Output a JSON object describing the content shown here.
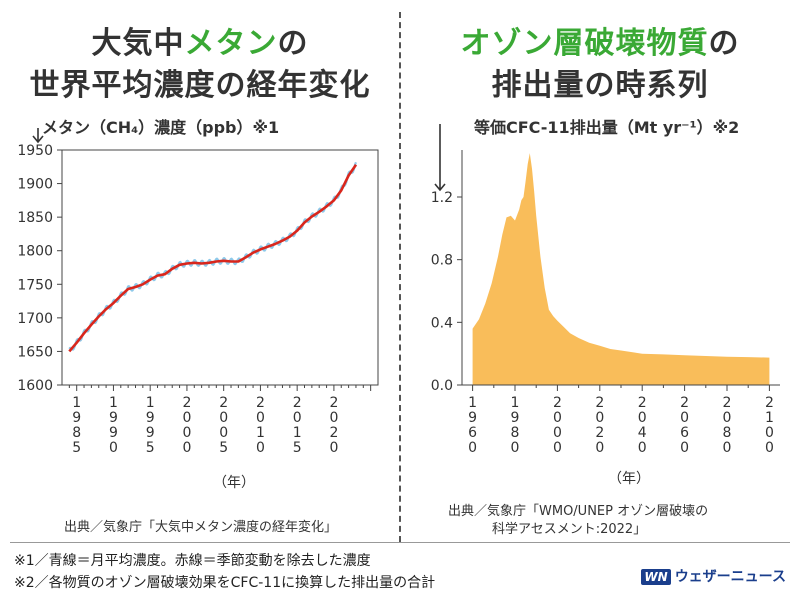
{
  "left": {
    "title_line1_pre": "大気中",
    "title_line1_hl": "メタン",
    "title_line1_post": "の",
    "title_line2": "世界平均濃度の経年変化",
    "unit_label": "メタン（CH₄）濃度（ppb）※1",
    "xaxis_unit": "（年）",
    "source": "出典／気象庁「大気中メタン濃度の経年変化」"
  },
  "right": {
    "title_line1_hl": "オゾン層破壊物質",
    "title_line1_post": "の",
    "title_line2": "排出量の時系列",
    "unit_label": "等価CFC-11排出量（Mt yr⁻¹）※2",
    "xaxis_unit": "（年）",
    "source_line1": "出典／気象庁「WMO/UNEP オゾン層破壊の",
    "source_line2": "科学アセスメント:2022」"
  },
  "footnotes": [
    "※1／青線＝月平均濃度。赤線＝季節変動を除去した濃度",
    "※2／各物質のオゾン層破壊効果をCFC-11に換算した排出量の合計"
  ],
  "logo": {
    "mark": "WN",
    "text": "ウェザーニュース"
  },
  "colors": {
    "highlight": "#3aa935",
    "trend_line": "#d9261c",
    "monthly_line": "#8ec9ea",
    "area_fill": "#f9bd5a",
    "text": "#333333"
  },
  "chart_data": [
    {
      "type": "line",
      "ylabel": "メタン（CH₄）濃度（ppb）※1",
      "xlabel": "（年）",
      "xlim": [
        1983,
        2026
      ],
      "ylim": [
        1600,
        1950
      ],
      "yticks": [
        1600,
        1650,
        1700,
        1750,
        1800,
        1850,
        1900,
        1950
      ],
      "xticks": [
        1985,
        1990,
        1995,
        2000,
        2005,
        2010,
        2015,
        2020
      ],
      "grid": false,
      "series": [
        {
          "role": "trend",
          "color": "#d9261c",
          "x": [
            1984,
            1985,
            1986,
            1987,
            1988,
            1989,
            1990,
            1991,
            1992,
            1993,
            1994,
            1995,
            1996,
            1997,
            1998,
            1999,
            2000,
            2001,
            2002,
            2003,
            2004,
            2005,
            2006,
            2007,
            2008,
            2009,
            2010,
            2011,
            2012,
            2013,
            2014,
            2015,
            2016,
            2017,
            2018,
            2019,
            2020,
            2021,
            2022,
            2023
          ],
          "y": [
            1650,
            1663,
            1677,
            1690,
            1702,
            1713,
            1722,
            1733,
            1743,
            1746,
            1750,
            1757,
            1763,
            1765,
            1773,
            1779,
            1781,
            1782,
            1781,
            1782,
            1784,
            1785,
            1784,
            1784,
            1790,
            1797,
            1802,
            1806,
            1810,
            1815,
            1821,
            1830,
            1842,
            1851,
            1858,
            1866,
            1875,
            1890,
            1912,
            1928
          ]
        }
      ],
      "monthly_amplitude": 4
    },
    {
      "type": "area",
      "ylabel": "等価CFC-11排出量（Mt yr⁻¹）※2",
      "xlabel": "（年）",
      "xlim": [
        1955,
        2105
      ],
      "ylim": [
        0,
        1.5
      ],
      "yticks": [
        0.0,
        0.4,
        0.8,
        1.2
      ],
      "yticklabels": [
        "0.0",
        "0.4",
        "0.8",
        "1.2"
      ],
      "xticks": [
        1960,
        1980,
        2000,
        2020,
        2040,
        2060,
        2080,
        2100
      ],
      "grid": false,
      "color": "#f9bd5a",
      "x": [
        1960,
        1963,
        1966,
        1969,
        1972,
        1974,
        1976,
        1978,
        1980,
        1982,
        1983,
        1984,
        1985,
        1986,
        1987,
        1988,
        1989,
        1990,
        1992,
        1994,
        1996,
        1998,
        2000,
        2003,
        2006,
        2010,
        2015,
        2020,
        2025,
        2030,
        2040,
        2050,
        2060,
        2070,
        2080,
        2090,
        2100
      ],
      "y": [
        0.36,
        0.42,
        0.52,
        0.65,
        0.82,
        0.96,
        1.07,
        1.08,
        1.05,
        1.12,
        1.18,
        1.2,
        1.3,
        1.41,
        1.48,
        1.38,
        1.24,
        1.08,
        0.82,
        0.62,
        0.48,
        0.44,
        0.41,
        0.37,
        0.33,
        0.3,
        0.27,
        0.25,
        0.23,
        0.22,
        0.2,
        0.195,
        0.19,
        0.185,
        0.18,
        0.178,
        0.175
      ]
    }
  ]
}
